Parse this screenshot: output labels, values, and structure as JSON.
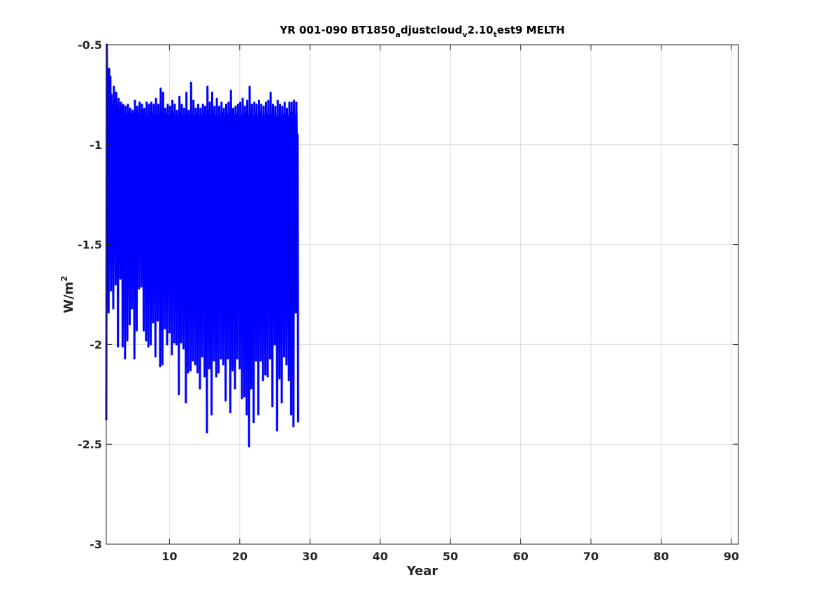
{
  "chart_data": {
    "type": "line",
    "title": {
      "parts": [
        {
          "text": "YR 001-090 BT1850",
          "sub": false
        },
        {
          "text": "a",
          "sub": true
        },
        {
          "text": "djustcloud",
          "sub": false
        },
        {
          "text": "v",
          "sub": true
        },
        {
          "text": "2.10",
          "sub": false
        },
        {
          "text": "t",
          "sub": true
        },
        {
          "text": "est9 MELTH",
          "sub": false
        }
      ]
    },
    "xlabel": "Year",
    "ylabel": {
      "base": "W/m",
      "sup": "2"
    },
    "xlim": [
      1,
      91
    ],
    "ylim": [
      -3,
      -0.5
    ],
    "xticks": [
      10,
      20,
      30,
      40,
      50,
      60,
      70,
      80,
      90
    ],
    "yticks": [
      -3,
      -2.5,
      -2,
      -1.5,
      -1,
      -0.5
    ],
    "xtick_labels": [
      "10",
      "20",
      "30",
      "40",
      "50",
      "60",
      "70",
      "80",
      "90"
    ],
    "ytick_labels": [
      "-3",
      "-2.5",
      "-2",
      "-1.5",
      "-1",
      "-0.5"
    ],
    "grid": true,
    "series": [
      {
        "color": "#0000ff",
        "x_start": 1,
        "x_step": 0.0833,
        "values": [
          -2.38,
          -0.5,
          -0.95,
          -0.63,
          -1.84,
          -0.62,
          -1.08,
          -0.66,
          -1.73,
          -0.75,
          -1.1,
          -0.8,
          -1.82,
          -0.71,
          -1.05,
          -0.78,
          -1.7,
          -0.74,
          -1.12,
          -0.8,
          -2.01,
          -0.77,
          -1.1,
          -0.83,
          -1.67,
          -0.79,
          -1.15,
          -0.81,
          -2.01,
          -0.8,
          -1.2,
          -0.84,
          -2.07,
          -0.81,
          -1.16,
          -0.85,
          -1.98,
          -0.8,
          -1.2,
          -0.84,
          -1.9,
          -0.82,
          -1.15,
          -0.85,
          -1.82,
          -0.83,
          -1.22,
          -0.85,
          -2.07,
          -0.78,
          -1.18,
          -0.84,
          -1.93,
          -0.81,
          -1.14,
          -0.85,
          -1.72,
          -0.79,
          -1.16,
          -0.85,
          -1.71,
          -0.8,
          -1.24,
          -0.83,
          -1.93,
          -0.82,
          -1.2,
          -0.85,
          -1.98,
          -0.79,
          -1.17,
          -0.86,
          -2.01,
          -0.8,
          -1.18,
          -0.84,
          -2.0,
          -0.79,
          -1.23,
          -0.85,
          -1.89,
          -0.8,
          -1.2,
          -0.86,
          -2.06,
          -0.77,
          -1.22,
          -0.86,
          -1.88,
          -0.8,
          -1.17,
          -0.85,
          -2.11,
          -0.72,
          -1.18,
          -0.84,
          -2.1,
          -0.74,
          -1.24,
          -0.86,
          -1.92,
          -0.82,
          -1.2,
          -0.85,
          -2.0,
          -0.8,
          -1.22,
          -0.86,
          -1.94,
          -0.81,
          -1.18,
          -0.85,
          -2.05,
          -0.78,
          -1.23,
          -0.84,
          -1.99,
          -0.8,
          -1.21,
          -0.86,
          -2.0,
          -0.83,
          -1.23,
          -0.86,
          -2.25,
          -0.76,
          -1.4,
          -0.84,
          -1.99,
          -0.8,
          -1.2,
          -0.86,
          -2.02,
          -0.82,
          -1.22,
          -0.86,
          -2.29,
          -0.74,
          -1.32,
          -0.85,
          -2.14,
          -0.83,
          -1.25,
          -0.86,
          -2.13,
          -0.69,
          -1.29,
          -0.85,
          -2.08,
          -0.78,
          -1.24,
          -0.86,
          -2.1,
          -0.82,
          -1.27,
          -0.85,
          -2.14,
          -0.8,
          -1.23,
          -0.86,
          -2.22,
          -0.82,
          -1.25,
          -0.86,
          -2.06,
          -0.8,
          -1.24,
          -0.85,
          -2.16,
          -0.81,
          -1.23,
          -0.85,
          -2.44,
          -0.71,
          -1.2,
          -0.83,
          -2.12,
          -0.79,
          -1.23,
          -0.86,
          -2.35,
          -0.74,
          -1.26,
          -0.83,
          -2.08,
          -0.81,
          -1.22,
          -0.86,
          -2.16,
          -0.77,
          -1.28,
          -0.86,
          -2.14,
          -0.81,
          -1.24,
          -0.86,
          -2.07,
          -0.79,
          -1.2,
          -0.84,
          -2.1,
          -0.82,
          -1.23,
          -0.86,
          -2.28,
          -0.8,
          -1.18,
          -0.85,
          -2.07,
          -0.79,
          -1.22,
          -0.85,
          -2.34,
          -0.73,
          -1.22,
          -0.83,
          -2.13,
          -0.82,
          -1.25,
          -0.86,
          -2.22,
          -0.81,
          -1.2,
          -0.85,
          -2.07,
          -0.8,
          -1.22,
          -0.86,
          -2.12,
          -0.79,
          -1.23,
          -0.86,
          -2.27,
          -0.77,
          -1.21,
          -0.85,
          -2.26,
          -0.81,
          -1.2,
          -0.84,
          -2.35,
          -0.78,
          -1.26,
          -0.86,
          -2.51,
          -0.71,
          -1.25,
          -0.85,
          -2.22,
          -0.8,
          -1.21,
          -0.86,
          -2.39,
          -0.79,
          -1.23,
          -0.85,
          -2.08,
          -0.8,
          -1.22,
          -0.86,
          -2.35,
          -0.78,
          -1.2,
          -0.84,
          -2.08,
          -0.8,
          -1.24,
          -0.86,
          -2.18,
          -0.81,
          -1.23,
          -0.86,
          -2.15,
          -0.79,
          -1.21,
          -0.85,
          -2.16,
          -0.78,
          -1.26,
          -0.86,
          -2.07,
          -0.74,
          -1.23,
          -0.85,
          -2.31,
          -0.8,
          -1.21,
          -0.84,
          -2.0,
          -0.81,
          -1.24,
          -0.86,
          -2.43,
          -0.78,
          -1.22,
          -0.86,
          -2.17,
          -0.8,
          -1.26,
          -0.86,
          -2.29,
          -0.81,
          -1.24,
          -0.85,
          -2.06,
          -0.79,
          -1.22,
          -0.85,
          -2.1,
          -0.82,
          -1.23,
          -0.86,
          -2.18,
          -0.79,
          -1.2,
          -0.84,
          -2.35,
          -0.79,
          -1.21,
          -0.84,
          -2.41,
          -0.78,
          -1.21,
          -0.86,
          -1.84,
          -0.79,
          -1.08,
          -0.95,
          -2.39
        ]
      }
    ]
  }
}
